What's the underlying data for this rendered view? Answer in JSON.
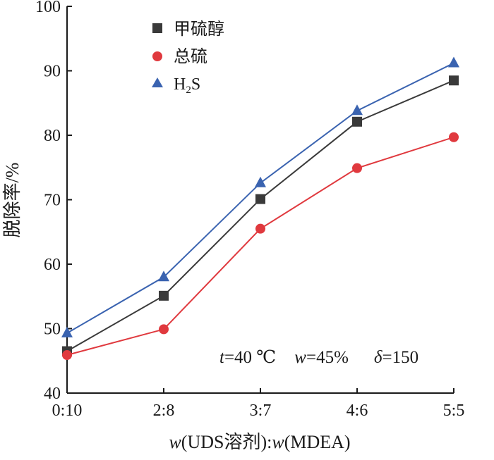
{
  "chart_data": {
    "type": "line",
    "categories": [
      "0:10",
      "2:8",
      "3:7",
      "4:6",
      "5:5"
    ],
    "xlabel": {
      "w1": "w",
      "mid": "(UDS溶剂):",
      "w2": "w",
      "end": "(MDEA)"
    },
    "ylabel": "脱除率/%",
    "ylim": [
      40,
      100
    ],
    "yticks": [
      "40",
      "50",
      "60",
      "70",
      "80",
      "90",
      "100"
    ],
    "grid": false,
    "legend_position": "top-left",
    "series": [
      {
        "name": "甲硫醇",
        "marker": "square",
        "color": "#3a3a3a",
        "values": [
          46.5,
          55.1,
          70.1,
          82.1,
          88.5
        ]
      },
      {
        "name": "总硫",
        "marker": "circle",
        "color": "#e0393e",
        "values": [
          45.9,
          49.9,
          65.5,
          74.9,
          79.7
        ]
      },
      {
        "name": "H₂S",
        "marker": "triangle",
        "color": "#3a63b0",
        "values": [
          49.3,
          58.0,
          72.6,
          83.8,
          91.2
        ]
      }
    ],
    "legend_labels": {
      "s0": "甲硫醇",
      "s1": "总硫",
      "s2_main": "H",
      "s2_sub": "2",
      "s2_end": "S"
    },
    "annotation": {
      "t_var": "t",
      "t_val": "=40 ℃",
      "w_var": "w",
      "w_val": "=45%",
      "d_var": "δ",
      "d_val": "=150"
    }
  }
}
